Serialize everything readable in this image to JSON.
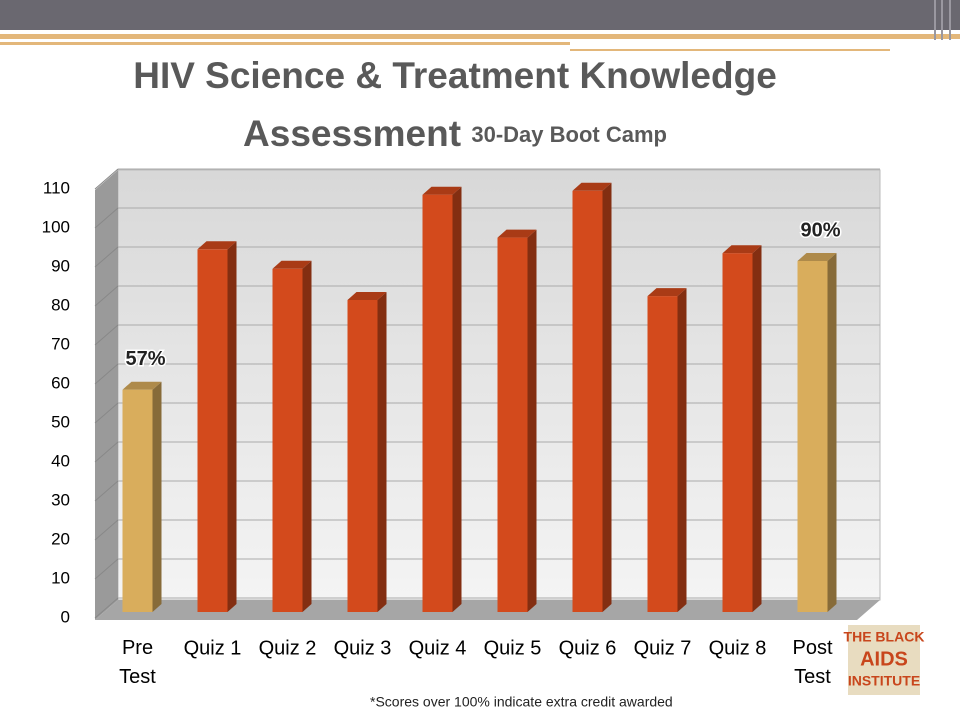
{
  "chart_data": {
    "type": "bar",
    "title": "HIV Science & Treatment Knowledge Assessment",
    "subtitle": "30-Day Boot Camp",
    "categories": [
      "Pre Test",
      "Quiz 1",
      "Quiz 2",
      "Quiz 3",
      "Quiz 4",
      "Quiz 5",
      "Quiz 6",
      "Quiz 7",
      "Quiz 8",
      "Post Test"
    ],
    "values": [
      57,
      93,
      88,
      80,
      107,
      96,
      108,
      81,
      92,
      90
    ],
    "value_labels": [
      "57%",
      null,
      null,
      null,
      null,
      null,
      null,
      null,
      null,
      "90%"
    ],
    "colors": [
      "#d9ad5c",
      "#d34a1c",
      "#d34a1c",
      "#d34a1c",
      "#d34a1c",
      "#d34a1c",
      "#d34a1c",
      "#d34a1c",
      "#d34a1c",
      "#d9ad5c"
    ],
    "ylim": [
      0,
      110
    ],
    "yticks": [
      0,
      10,
      20,
      30,
      40,
      50,
      60,
      70,
      80,
      90,
      100,
      110
    ],
    "grid": true,
    "footnote": "*Scores over 100% indicate extra credit awarded"
  },
  "logo": [
    "THE BLACK",
    "AIDS",
    "INSTITUTE"
  ]
}
